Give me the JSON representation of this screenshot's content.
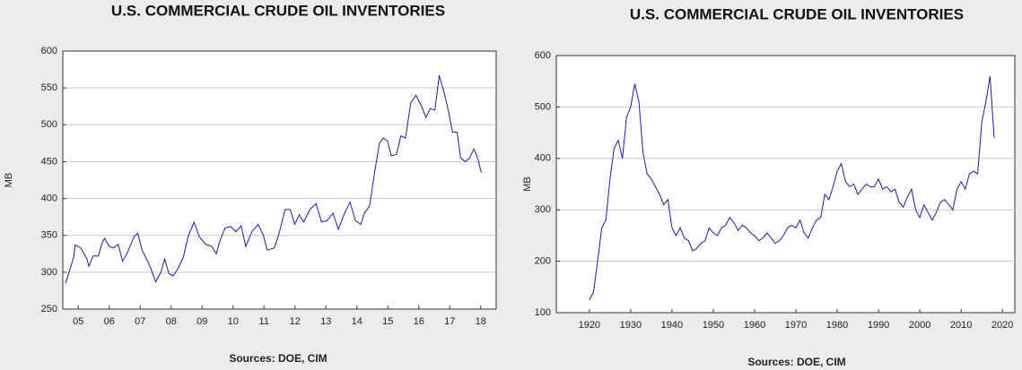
{
  "chart_data": [
    {
      "type": "line",
      "title": "U.S. COMMERCIAL CRUDE OIL INVENTORIES",
      "ylabel": "MB",
      "source": "Sources:  DOE, CIM",
      "color": "#1c1ca8",
      "grid": true,
      "xlim": [
        2005,
        2019
      ],
      "ylim": [
        250,
        600
      ],
      "yticks": [
        250,
        300,
        350,
        400,
        450,
        500,
        550,
        600
      ],
      "xticks": [
        {
          "value": 2005.5,
          "label": "05"
        },
        {
          "value": 2006.5,
          "label": "06"
        },
        {
          "value": 2007.5,
          "label": "07"
        },
        {
          "value": 2008.5,
          "label": "08"
        },
        {
          "value": 2009.5,
          "label": "09"
        },
        {
          "value": 2010.5,
          "label": "10"
        },
        {
          "value": 2011.5,
          "label": "11"
        },
        {
          "value": 2012.5,
          "label": "12"
        },
        {
          "value": 2013.5,
          "label": "13"
        },
        {
          "value": 2014.5,
          "label": "14"
        },
        {
          "value": 2015.5,
          "label": "15"
        },
        {
          "value": 2016.5,
          "label": "16"
        },
        {
          "value": 2017.5,
          "label": "17"
        },
        {
          "value": 2018.5,
          "label": "18"
        }
      ],
      "x": [
        2005.09,
        2005.35,
        2005.4,
        2005.58,
        2005.78,
        2005.84,
        2005.98,
        2006.15,
        2006.27,
        2006.35,
        2006.5,
        2006.64,
        2006.79,
        2006.93,
        2007.07,
        2007.3,
        2007.42,
        2007.56,
        2007.8,
        2008.0,
        2008.17,
        2008.29,
        2008.43,
        2008.57,
        2008.72,
        2008.89,
        2009.06,
        2009.24,
        2009.41,
        2009.61,
        2009.81,
        2009.96,
        2010.07,
        2010.24,
        2010.42,
        2010.59,
        2010.76,
        2010.91,
        2011.11,
        2011.31,
        2011.48,
        2011.6,
        2011.83,
        2011.97,
        2012.18,
        2012.35,
        2012.49,
        2012.64,
        2012.78,
        2012.98,
        2013.18,
        2013.36,
        2013.53,
        2013.73,
        2013.9,
        2014.1,
        2014.28,
        2014.45,
        2014.63,
        2014.74,
        2014.91,
        2015.09,
        2015.23,
        2015.35,
        2015.49,
        2015.61,
        2015.78,
        2015.92,
        2016.07,
        2016.24,
        2016.41,
        2016.59,
        2016.73,
        2016.87,
        2017.02,
        2017.16,
        2017.31,
        2017.45,
        2017.59,
        2017.74,
        2017.85,
        2018.0,
        2018.14,
        2018.28,
        2018.4,
        2018.52
      ],
      "values": [
        285,
        320,
        337,
        333,
        318,
        308,
        322,
        322,
        340,
        346,
        335,
        333,
        338,
        315,
        325,
        348,
        353,
        330,
        310,
        287,
        300,
        318,
        298,
        295,
        305,
        320,
        350,
        368,
        348,
        338,
        335,
        325,
        342,
        360,
        362,
        355,
        363,
        335,
        355,
        365,
        350,
        330,
        333,
        350,
        385,
        385,
        365,
        378,
        368,
        385,
        393,
        368,
        370,
        380,
        358,
        380,
        395,
        370,
        365,
        380,
        390,
        440,
        475,
        482,
        478,
        458,
        460,
        485,
        482,
        530,
        540,
        525,
        510,
        522,
        520,
        567,
        545,
        520,
        490,
        490,
        455,
        450,
        455,
        467,
        455,
        435
      ]
    },
    {
      "type": "line",
      "title": "U.S. COMMERCIAL CRUDE OIL INVENTORIES",
      "ylabel": "MB",
      "source": "Sources:  DOE, CIM",
      "color": "#1c1ca8",
      "grid": true,
      "xlim": [
        1912,
        2023
      ],
      "ylim": [
        100,
        600
      ],
      "yticks": [
        100,
        200,
        300,
        400,
        500,
        600
      ],
      "xticks": [
        1920,
        1930,
        1940,
        1950,
        1960,
        1970,
        1980,
        1990,
        2000,
        2010,
        2020
      ],
      "x": [
        1920,
        1921,
        1922,
        1923,
        1924,
        1925,
        1926,
        1927,
        1928,
        1929,
        1930,
        1931,
        1932,
        1933,
        1934,
        1935,
        1936,
        1937,
        1938,
        1939,
        1940,
        1941,
        1942,
        1943,
        1944,
        1945,
        1946,
        1947,
        1948,
        1949,
        1950,
        1951,
        1952,
        1953,
        1954,
        1955,
        1956,
        1957,
        1958,
        1959,
        1960,
        1961,
        1962,
        1963,
        1964,
        1965,
        1966,
        1967,
        1968,
        1969,
        1970,
        1971,
        1972,
        1973,
        1974,
        1975,
        1976,
        1977,
        1978,
        1979,
        1980,
        1981,
        1982,
        1983,
        1984,
        1985,
        1986,
        1987,
        1988,
        1989,
        1990,
        1991,
        1992,
        1993,
        1994,
        1995,
        1996,
        1997,
        1998,
        1999,
        2000,
        2001,
        2002,
        2003,
        2004,
        2005,
        2006,
        2007,
        2008,
        2009,
        2010,
        2011,
        2012,
        2013,
        2014,
        2015,
        2016,
        2017,
        2018
      ],
      "values": [
        125,
        140,
        200,
        265,
        280,
        360,
        420,
        435,
        400,
        480,
        500,
        545,
        510,
        410,
        370,
        360,
        345,
        330,
        310,
        320,
        265,
        250,
        265,
        245,
        240,
        220,
        225,
        235,
        240,
        265,
        255,
        250,
        265,
        270,
        285,
        275,
        260,
        270,
        265,
        255,
        250,
        240,
        245,
        255,
        245,
        235,
        240,
        250,
        265,
        270,
        265,
        280,
        255,
        245,
        265,
        280,
        285,
        330,
        320,
        345,
        375,
        390,
        355,
        345,
        350,
        330,
        340,
        350,
        345,
        345,
        360,
        340,
        345,
        335,
        340,
        315,
        305,
        325,
        340,
        300,
        285,
        310,
        295,
        280,
        295,
        315,
        320,
        310,
        300,
        340,
        355,
        340,
        370,
        375,
        370,
        470,
        510,
        560,
        440
      ]
    }
  ]
}
